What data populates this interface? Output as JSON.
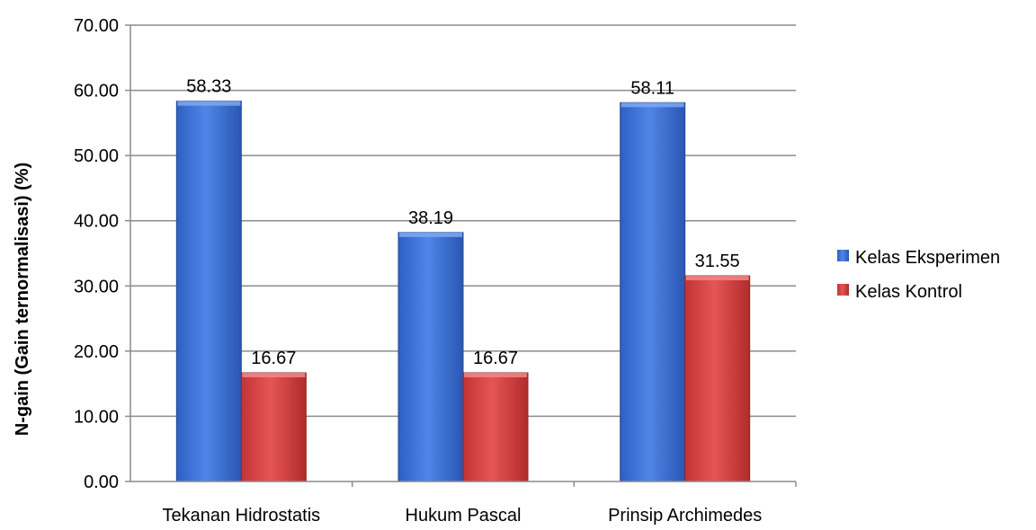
{
  "chart_data": {
    "type": "bar",
    "title": "",
    "xlabel": "",
    "ylabel": "N-gain (Gain ternormalisasi) (%)",
    "ylim": [
      0,
      70
    ],
    "ytick_step": 10,
    "yticks": [
      "0.00",
      "10.00",
      "20.00",
      "30.00",
      "40.00",
      "50.00",
      "60.00",
      "70.00"
    ],
    "grid": true,
    "legend_position": "right",
    "categories": [
      "Tekanan Hidrostatis",
      "Hukum Pascal",
      "Prinsip Archimedes"
    ],
    "series": [
      {
        "name": "Kelas Eksperimen",
        "color": "#3c6fd3",
        "values": [
          58.33,
          38.19,
          58.11
        ],
        "labels": [
          "58.33",
          "38.19",
          "58.11"
        ]
      },
      {
        "name": "Kelas Kontrol",
        "color": "#d53f3f",
        "values": [
          16.67,
          16.67,
          31.55
        ],
        "labels": [
          "16.67",
          "16.67",
          "31.55"
        ]
      }
    ]
  }
}
